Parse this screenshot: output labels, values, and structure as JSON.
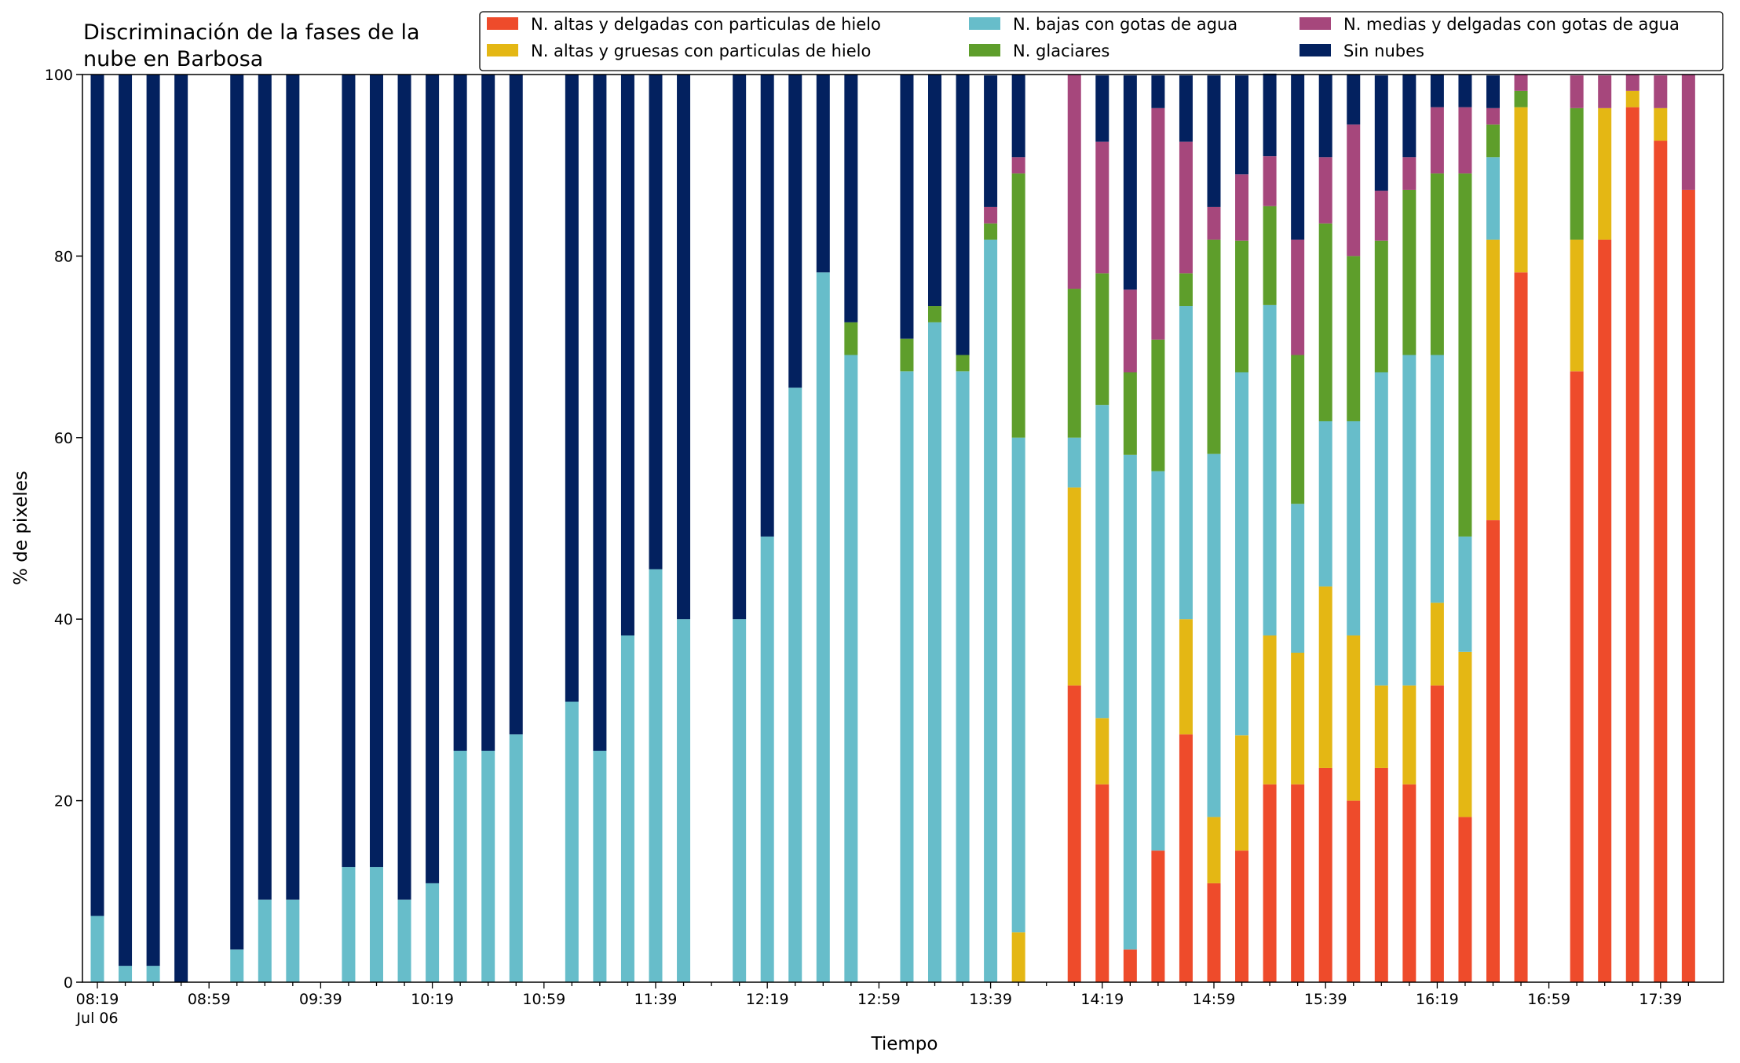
{
  "chart_data": {
    "type": "bar",
    "stacked": true,
    "title": "Discriminación de la fases de la nube en Barbosa",
    "title_lines": [
      "Discriminación de la fases de la",
      "nube en Barbosa"
    ],
    "xlabel": "Tiempo",
    "ylabel": "% de pixeles",
    "ylim": [
      0,
      100
    ],
    "yticks": [
      0,
      20,
      40,
      60,
      80,
      100
    ],
    "xtick_labels": [
      "08:19",
      "08:59",
      "09:39",
      "10:19",
      "10:59",
      "11:39",
      "12:19",
      "12:59",
      "13:39",
      "14:19",
      "14:59",
      "15:39",
      "16:19",
      "16:59",
      "17:39"
    ],
    "xtick_sublabel": "Jul 06",
    "legend_position": "top-right",
    "colors": [
      "#ee4b2b",
      "#e4b714",
      "#67bdca",
      "#5e9e2b",
      "#a6477c",
      "#03215f"
    ],
    "time_start": "08:19",
    "time_step_minutes": 10,
    "series": [
      {
        "name": "N. altas y delgadas con particulas de hielo",
        "values": [
          0,
          0,
          0,
          0,
          null,
          0,
          0,
          0,
          null,
          0,
          0,
          0,
          0,
          0,
          0,
          0,
          null,
          0,
          0,
          0,
          0,
          0,
          null,
          0,
          0,
          0,
          0,
          0,
          null,
          0,
          0,
          0,
          0,
          0,
          null,
          32.7,
          21.8,
          3.6,
          14.5,
          27.3,
          10.9,
          14.5,
          21.8,
          21.8,
          23.6,
          20.0,
          23.6,
          21.8,
          32.7,
          18.2,
          50.9,
          78.2,
          null,
          67.3,
          81.8,
          96.4,
          92.7,
          87.3
        ]
      },
      {
        "name": "N. altas y gruesas con particulas de hielo",
        "values": [
          0,
          0,
          0,
          0,
          null,
          0,
          0,
          0,
          null,
          0,
          0,
          0,
          0,
          0,
          0,
          0,
          null,
          0,
          0,
          0,
          0,
          0,
          null,
          0,
          0,
          0,
          0,
          0,
          null,
          0,
          0,
          0,
          0,
          5.5,
          null,
          21.8,
          7.3,
          0,
          0,
          12.7,
          7.3,
          12.7,
          16.4,
          14.5,
          20.0,
          18.2,
          9.1,
          10.9,
          9.1,
          18.2,
          30.9,
          18.2,
          null,
          14.5,
          14.5,
          1.8,
          3.6,
          0
        ]
      },
      {
        "name": "N. bajas con gotas de agua",
        "values": [
          7.3,
          1.8,
          1.8,
          0,
          null,
          3.6,
          9.1,
          9.1,
          null,
          12.7,
          12.7,
          9.1,
          10.9,
          25.5,
          25.5,
          27.3,
          null,
          30.9,
          25.5,
          38.2,
          45.5,
          40.0,
          null,
          40.0,
          49.1,
          65.5,
          78.2,
          69.1,
          null,
          67.3,
          72.7,
          67.3,
          81.8,
          54.5,
          null,
          5.5,
          34.5,
          54.5,
          41.8,
          34.5,
          40.0,
          40.0,
          36.4,
          16.4,
          18.2,
          23.6,
          34.5,
          36.4,
          27.3,
          12.7,
          9.1,
          0,
          null,
          0,
          0,
          0,
          0,
          0
        ]
      },
      {
        "name": "N. glaciares",
        "values": [
          0,
          0,
          0,
          0,
          null,
          0,
          0,
          0,
          null,
          0,
          0,
          0,
          0,
          0,
          0,
          0,
          null,
          0,
          0,
          0,
          0,
          0,
          null,
          0,
          0,
          0,
          0,
          3.6,
          null,
          3.6,
          1.8,
          1.8,
          1.8,
          29.1,
          null,
          16.4,
          14.5,
          9.1,
          14.5,
          3.6,
          23.6,
          14.5,
          10.9,
          16.4,
          21.8,
          18.2,
          14.5,
          18.2,
          20.0,
          40.0,
          3.6,
          1.8,
          null,
          14.5,
          0,
          0,
          0,
          0
        ]
      },
      {
        "name": "N. medias y delgadas con gotas de agua",
        "values": [
          0,
          0,
          0,
          0,
          null,
          0,
          0,
          0,
          null,
          0,
          0,
          0,
          0,
          0,
          0,
          0,
          null,
          0,
          0,
          0,
          0,
          0,
          null,
          0,
          0,
          0,
          0,
          0,
          null,
          0,
          0,
          0,
          1.8,
          1.8,
          null,
          23.6,
          14.5,
          9.1,
          25.5,
          14.5,
          3.6,
          7.3,
          5.5,
          12.7,
          7.3,
          14.5,
          5.5,
          3.6,
          7.3,
          7.3,
          1.8,
          1.8,
          null,
          3.6,
          3.6,
          1.8,
          3.6,
          12.7
        ]
      },
      {
        "name": "Sin nubes",
        "values": [
          92.7,
          98.2,
          98.2,
          100,
          null,
          96.4,
          90.9,
          90.9,
          null,
          87.3,
          87.3,
          90.9,
          89.1,
          74.5,
          74.5,
          72.7,
          null,
          69.1,
          74.5,
          61.8,
          54.5,
          60.0,
          null,
          60.0,
          50.9,
          34.5,
          21.8,
          27.3,
          null,
          29.1,
          25.5,
          30.9,
          14.5,
          9.1,
          null,
          0,
          7.3,
          23.6,
          3.6,
          7.3,
          14.5,
          10.9,
          9.1,
          18.2,
          9.1,
          5.5,
          12.7,
          9.1,
          3.6,
          3.6,
          3.6,
          0,
          null,
          0,
          0,
          0,
          0,
          0
        ]
      }
    ]
  }
}
